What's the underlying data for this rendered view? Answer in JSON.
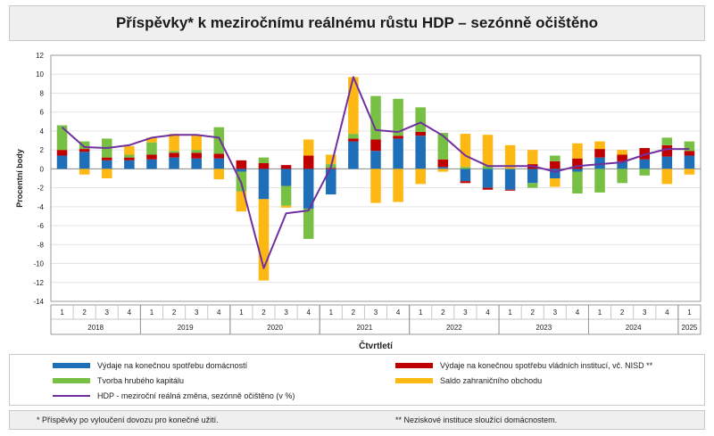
{
  "title": "Příspěvky* k meziročnímu reálnému růstu HDP – sezónně očištěno",
  "chart_data": {
    "type": "bar",
    "stacked": true,
    "ylabel": "Procentní body",
    "xlabel": "Čtvrtletí",
    "ylim": [
      -14,
      12
    ],
    "yticks": [
      -14,
      -12,
      -10,
      -8,
      -6,
      -4,
      -2,
      0,
      2,
      4,
      6,
      8,
      10,
      12
    ],
    "grid": true,
    "categories": [
      "1",
      "2",
      "3",
      "4",
      "1",
      "2",
      "3",
      "4",
      "1",
      "2",
      "3",
      "4",
      "1",
      "2",
      "3",
      "4",
      "1",
      "2",
      "3",
      "4",
      "1",
      "2",
      "3",
      "4",
      "1",
      "2",
      "3",
      "4",
      "1"
    ],
    "years": [
      {
        "label": "2018",
        "start": 0,
        "count": 4
      },
      {
        "label": "2019",
        "start": 4,
        "count": 4
      },
      {
        "label": "2020",
        "start": 8,
        "count": 4
      },
      {
        "label": "2021",
        "start": 12,
        "count": 4
      },
      {
        "label": "2022",
        "start": 16,
        "count": 4
      },
      {
        "label": "2023",
        "start": 20,
        "count": 4
      },
      {
        "label": "2024",
        "start": 24,
        "count": 4
      },
      {
        "label": "2025",
        "start": 28,
        "count": 1
      }
    ],
    "series": [
      {
        "name": "Výdaje na konečnou spotřebu domácností",
        "kind": "bar",
        "color": "#1f6fb8",
        "values": [
          1.4,
          1.8,
          0.9,
          0.9,
          1.0,
          1.2,
          1.1,
          1.1,
          -0.3,
          -3.2,
          -1.8,
          -4.2,
          -2.7,
          2.9,
          1.9,
          3.2,
          3.5,
          0.2,
          -1.3,
          -2.0,
          -2.2,
          -1.5,
          -1.0,
          -0.3,
          1.2,
          0.8,
          1.0,
          1.3,
          1.4
        ]
      },
      {
        "name": "Výdaje na konečnou spotřebu vládních institucí, vč. NISD **",
        "kind": "bar",
        "color": "#c00000",
        "values": [
          0.6,
          0.3,
          0.3,
          0.3,
          0.5,
          0.5,
          0.6,
          0.5,
          0.9,
          0.6,
          0.4,
          1.4,
          0.1,
          0.3,
          1.2,
          0.3,
          0.4,
          0.8,
          -0.2,
          -0.2,
          -0.1,
          0.5,
          0.8,
          1.1,
          0.9,
          0.7,
          1.2,
          1.2,
          0.5
        ]
      },
      {
        "name": "Tvorba hrubého kapitálu",
        "kind": "bar",
        "color": "#77c043",
        "values": [
          2.6,
          0.8,
          2.0,
          0.3,
          1.3,
          0.2,
          0.3,
          2.8,
          -2.1,
          0.6,
          -2.1,
          -3.2,
          0.4,
          0.5,
          4.6,
          3.9,
          2.6,
          2.8,
          0.2,
          0.3,
          0.0,
          -0.5,
          0.6,
          -2.3,
          -2.5,
          -1.5,
          -0.7,
          0.8,
          1.0
        ]
      },
      {
        "name": "Saldo zahraničního obchodu",
        "kind": "bar",
        "color": "#fdb813",
        "values": [
          0.0,
          -0.6,
          -1.0,
          0.9,
          0.5,
          1.8,
          1.6,
          -1.1,
          -2.1,
          -8.6,
          -0.2,
          1.7,
          1.0,
          6.0,
          -3.6,
          -3.5,
          -1.6,
          -0.3,
          3.5,
          3.3,
          2.5,
          1.5,
          -0.9,
          1.6,
          0.8,
          0.5,
          0.0,
          -1.6,
          -0.6
        ]
      },
      {
        "name": "HDP - meziroční reálná změna, sezónně očištěno (v %)",
        "kind": "line",
        "color": "#7030a0",
        "values": [
          4.4,
          2.3,
          2.2,
          2.5,
          3.3,
          3.6,
          3.6,
          3.3,
          -1.5,
          -10.5,
          -4.7,
          -4.4,
          0.2,
          9.7,
          4.1,
          3.9,
          4.9,
          3.5,
          1.4,
          0.3,
          0.3,
          0.3,
          -0.3,
          0.3,
          0.5,
          0.7,
          1.5,
          2.1,
          2.1
        ]
      }
    ]
  },
  "footnotes": {
    "left": "* Příspěvky po vyloučení dovozu pro konečné užití.",
    "right": "** Neziskové instituce sloužící domácnostem."
  }
}
